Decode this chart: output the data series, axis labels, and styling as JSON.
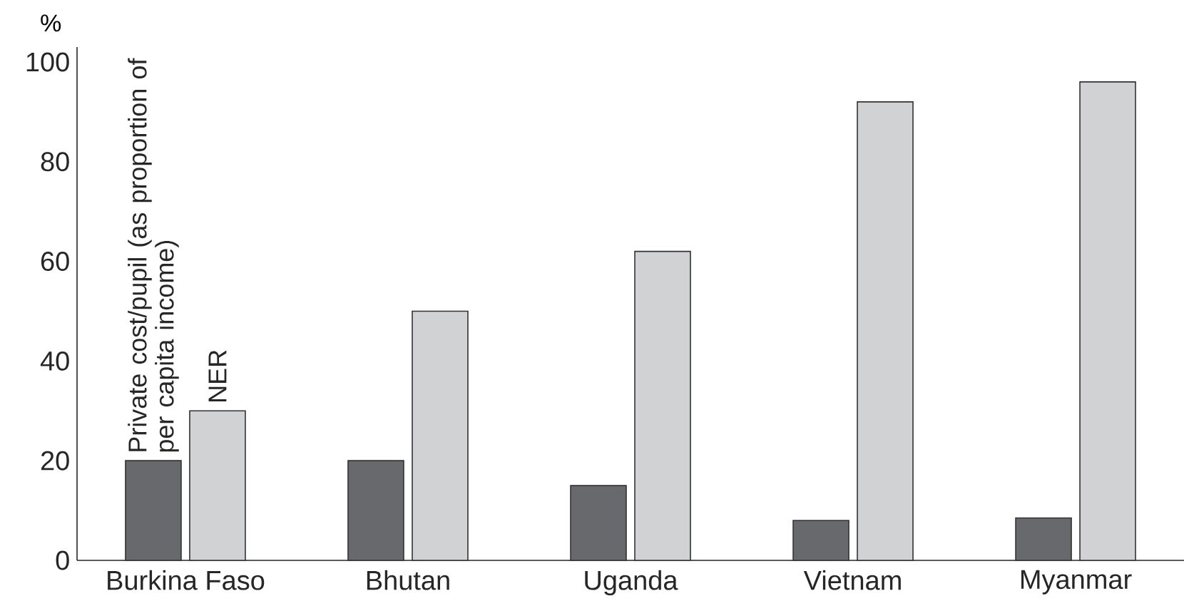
{
  "chart_data": {
    "type": "bar",
    "ylabel": "%",
    "categories": [
      "Burkina Faso",
      "Bhutan",
      "Uganda",
      "Vietnam",
      "Myanmar"
    ],
    "series": [
      {
        "name": "Private cost/pupil (as proportion of per capita income)",
        "color": "#68696d",
        "values": [
          20,
          20,
          15,
          8,
          8.5
        ]
      },
      {
        "name": "NER",
        "color": "#d1d2d4",
        "values": [
          30,
          50,
          62,
          92,
          96
        ]
      }
    ],
    "ylim": [
      0,
      103
    ],
    "yticks": [
      0,
      20,
      40,
      60,
      80,
      100
    ],
    "grid": false,
    "legend": false
  }
}
